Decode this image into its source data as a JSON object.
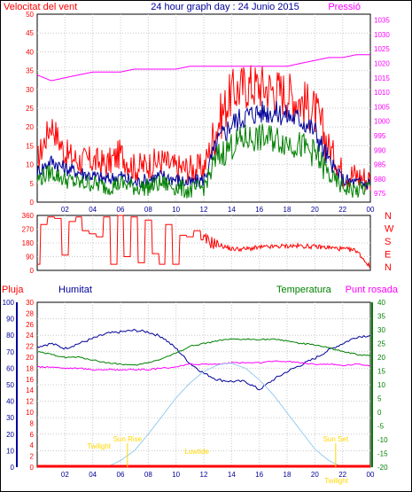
{
  "title": "24 hour graph day : 24 Junio 2015",
  "colors": {
    "red": "#ff0000",
    "blue": "#000099",
    "green": "#008000",
    "magenta": "#ff00ff",
    "lightblue": "#99ccee",
    "yellow": "#ffd700",
    "frame": "#000000"
  },
  "x_ticks": [
    "02",
    "04",
    "06",
    "08",
    "10",
    "12",
    "14",
    "16",
    "18",
    "20",
    "22",
    "00"
  ],
  "x_ticks_bottom": [
    "02",
    "04",
    "06",
    "08",
    "10",
    "12",
    "14",
    "16",
    "18",
    "20",
    "22",
    "00"
  ],
  "chart_data": [
    {
      "type": "line",
      "name": "wind-and-pressure",
      "title": "24 hour graph day : 24 Junio 2015",
      "left_label": "Velocitat del vent",
      "right_label": "Pressió",
      "y_left_ticks": [
        "0",
        "5",
        "10",
        "15",
        "20",
        "25",
        "30",
        "35",
        "40",
        "45",
        "50"
      ],
      "y_right_ticks": [
        "975",
        "980",
        "985",
        "990",
        "995",
        "1000",
        "1005",
        "1010",
        "1015",
        "1020",
        "1025",
        "1030",
        "1035"
      ],
      "ylim_left": [
        0,
        50
      ],
      "ylim_right": [
        972,
        1037
      ],
      "series": [
        {
          "role": "gust",
          "color": "red",
          "hours": [
            0,
            1,
            2,
            3,
            4,
            5,
            6,
            7,
            8,
            9,
            10,
            11,
            12,
            13,
            14,
            15,
            16,
            17,
            18,
            19,
            20,
            21,
            22,
            23,
            24
          ],
          "values": [
            11,
            21,
            13,
            11,
            11,
            10,
            13,
            9,
            10,
            11,
            9,
            9,
            9,
            21,
            29,
            31,
            31,
            30,
            29,
            27,
            24,
            15,
            8,
            7,
            6
          ]
        },
        {
          "role": "speed",
          "color": "blue",
          "hours": [
            0,
            1,
            2,
            3,
            4,
            5,
            6,
            7,
            8,
            9,
            10,
            11,
            12,
            13,
            14,
            15,
            16,
            17,
            18,
            19,
            20,
            21,
            22,
            23,
            24
          ],
          "values": [
            8,
            11,
            9,
            8,
            7,
            6,
            7,
            5,
            6,
            7,
            6,
            5,
            6,
            16,
            21,
            23,
            24,
            24,
            23,
            22,
            19,
            11,
            6,
            5,
            5
          ]
        },
        {
          "role": "average",
          "color": "green",
          "hours": [
            0,
            1,
            2,
            3,
            4,
            5,
            6,
            7,
            8,
            9,
            10,
            11,
            12,
            13,
            14,
            15,
            16,
            17,
            18,
            19,
            20,
            21,
            22,
            23,
            24
          ],
          "values": [
            6,
            8,
            6,
            5,
            5,
            4,
            5,
            4,
            4,
            5,
            4,
            3,
            4,
            12,
            15,
            17,
            17,
            17,
            16,
            15,
            13,
            7,
            4,
            3,
            4
          ]
        },
        {
          "role": "pressure",
          "color": "magenta",
          "hours": [
            0,
            1,
            2,
            3,
            4,
            5,
            6,
            7,
            8,
            9,
            10,
            11,
            12,
            13,
            14,
            15,
            16,
            17,
            18,
            19,
            20,
            21,
            22,
            23,
            24
          ],
          "values": [
            1016,
            1014,
            1015,
            1016,
            1017,
            1017,
            1017,
            1018,
            1018,
            1018,
            1018,
            1019,
            1019,
            1019,
            1019,
            1019,
            1019,
            1019,
            1019,
            1020,
            1021,
            1022,
            1022,
            1023,
            1023
          ]
        }
      ]
    },
    {
      "type": "line",
      "name": "wind-direction",
      "y_left_ticks": [
        "0",
        "90",
        "180",
        "270",
        "360"
      ],
      "ylim": [
        0,
        360
      ],
      "compass": [
        "N",
        "W",
        "S",
        "E",
        "N"
      ],
      "series": [
        {
          "role": "direction",
          "color": "red",
          "hours": [
            0,
            0.5,
            1,
            1.5,
            2,
            2.5,
            3,
            3.5,
            4,
            4.5,
            5,
            5.5,
            6,
            6.5,
            7,
            7.5,
            8,
            8.5,
            9,
            9.5,
            10,
            10.5,
            11,
            11.5,
            12,
            13,
            14,
            15,
            16,
            17,
            18,
            19,
            20,
            21,
            22,
            23,
            24
          ],
          "values": [
            40,
            300,
            350,
            340,
            100,
            320,
            350,
            260,
            240,
            220,
            350,
            40,
            360,
            90,
            350,
            50,
            330,
            110,
            40,
            300,
            40,
            230,
            220,
            260,
            200,
            170,
            140,
            140,
            150,
            155,
            160,
            160,
            155,
            150,
            140,
            130,
            20
          ]
        }
      ]
    },
    {
      "type": "line",
      "name": "rain-humidity-temperature",
      "left_label_1": "Pluja",
      "left_label_2": "Humitat",
      "mid_label": "Temperatura",
      "right_label": "Punt rosada",
      "y_rain_ticks": [
        "0",
        "2",
        "4",
        "6",
        "8",
        "10",
        "12",
        "14",
        "16",
        "18",
        "20",
        "22",
        "24",
        "26",
        "28",
        "30"
      ],
      "y_hum_ticks": [
        "0",
        "10",
        "20",
        "30",
        "40",
        "50",
        "60",
        "70",
        "80",
        "90",
        "100"
      ],
      "y_temp_ticks": [
        "-20",
        "-15",
        "-10",
        "-5",
        "0",
        "5",
        "10",
        "15",
        "20",
        "25",
        "30",
        "35",
        "40"
      ],
      "ylim_hum": [
        0,
        100
      ],
      "ylim_temp": [
        -20,
        40
      ],
      "annotations": [
        "Sun Rise",
        "Sun Set",
        "Twilight",
        "Twilight",
        "Lowtide"
      ],
      "series": [
        {
          "role": "humidity",
          "color": "blue",
          "hours": [
            0,
            1,
            2,
            3,
            4,
            5,
            6,
            7,
            8,
            9,
            10,
            11,
            12,
            13,
            14,
            15,
            16,
            17,
            18,
            19,
            20,
            21,
            22,
            23,
            24
          ],
          "values": [
            73,
            75,
            72,
            75,
            78,
            81,
            82,
            83,
            82,
            79,
            72,
            63,
            57,
            53,
            52,
            52,
            47,
            53,
            58,
            62,
            66,
            71,
            75,
            79,
            80
          ]
        },
        {
          "role": "temperature",
          "color": "green",
          "hours": [
            0,
            1,
            2,
            3,
            4,
            5,
            6,
            7,
            8,
            9,
            10,
            11,
            12,
            13,
            14,
            15,
            16,
            17,
            18,
            19,
            20,
            21,
            22,
            23,
            24
          ],
          "values": [
            22,
            21,
            20,
            20,
            19,
            18,
            17.5,
            17,
            18,
            19.5,
            21.5,
            24,
            25,
            26,
            26.5,
            26.5,
            26.5,
            26.5,
            26,
            25,
            24.5,
            23.5,
            22,
            21,
            20.5
          ]
        },
        {
          "role": "dewpoint",
          "color": "magenta",
          "hours": [
            0,
            1,
            2,
            3,
            4,
            5,
            6,
            7,
            8,
            9,
            10,
            11,
            12,
            13,
            14,
            15,
            16,
            17,
            18,
            19,
            20,
            21,
            22,
            23,
            24
          ],
          "values": [
            16.5,
            16.5,
            16,
            16,
            15.5,
            15.5,
            15.5,
            15.5,
            15.5,
            16,
            16.5,
            17.5,
            17.5,
            17.5,
            18,
            18,
            18,
            18.5,
            18.5,
            18,
            17.5,
            17.5,
            17,
            17.5,
            17
          ]
        },
        {
          "role": "solar",
          "color": "lightblue",
          "hours": [
            5,
            6,
            7,
            8,
            9,
            10,
            11,
            12,
            13,
            13.7,
            14,
            15,
            16,
            17,
            18,
            19,
            20,
            21,
            22
          ],
          "values": [
            0,
            4,
            10,
            20,
            31,
            42,
            51,
            58,
            62,
            63,
            63,
            60,
            53,
            44,
            33,
            22,
            11,
            4,
            0
          ]
        },
        {
          "role": "rain",
          "color": "red",
          "hours": [
            0,
            24
          ],
          "values": [
            0,
            0
          ]
        }
      ]
    }
  ]
}
